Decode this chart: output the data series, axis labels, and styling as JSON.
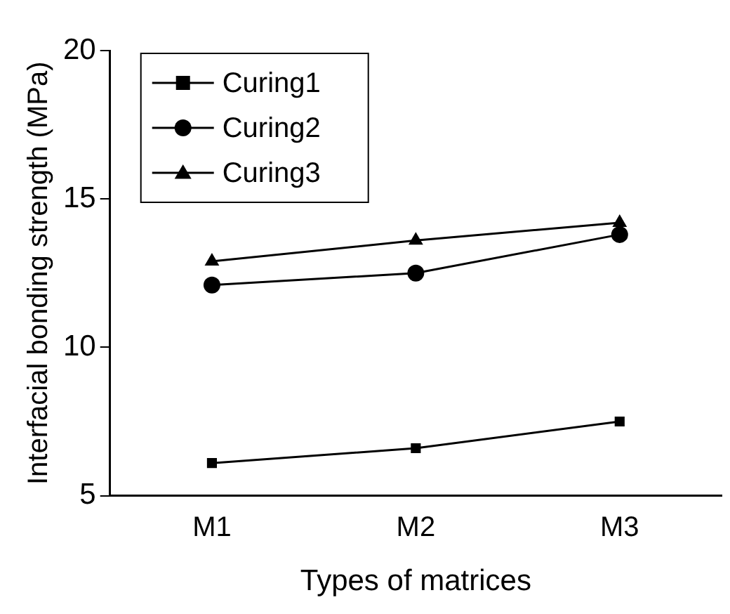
{
  "chart_data": {
    "type": "line",
    "xlabel": "Types of matrices",
    "ylabel": "Interfacial bonding strength (MPa)",
    "categories": [
      "M1",
      "M2",
      "M3"
    ],
    "series": [
      {
        "name": "Curing1",
        "color": "#000000",
        "marker": "square",
        "values": [
          6.1,
          6.6,
          7.5
        ]
      },
      {
        "name": "Curing2",
        "color": "#000000",
        "marker": "circle",
        "values": [
          12.1,
          12.5,
          13.8
        ]
      },
      {
        "name": "Curing3",
        "color": "#000000",
        "marker": "triangle",
        "values": [
          12.9,
          13.6,
          14.2
        ]
      }
    ],
    "ylim": [
      5,
      20
    ],
    "yticks": [
      5,
      10,
      15,
      20
    ],
    "grid": false,
    "legend": "top left",
    "line_style": "solid"
  }
}
